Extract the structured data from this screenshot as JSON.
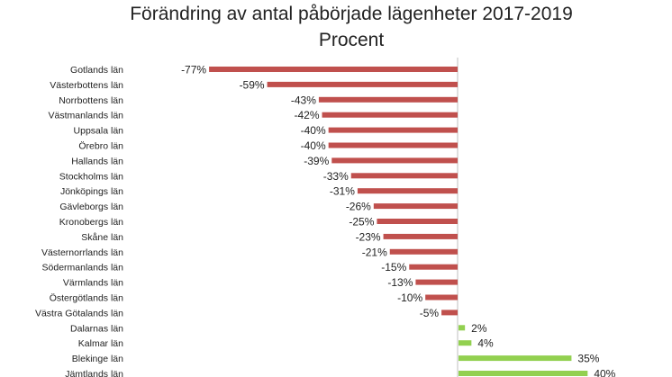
{
  "colors": {
    "negative": "#c0504d",
    "positive": "#92d050",
    "axis": "#bfbfbf",
    "text": "#222222"
  },
  "chart_data": {
    "type": "bar",
    "orientation": "horizontal",
    "title": "Förändring av antal påbörjade lägenheter 2017-2019",
    "subtitle": "Procent",
    "grid": false,
    "categories": [
      "Gotlands län",
      "Västerbottens län",
      "Norrbottens län",
      "Västmanlands län",
      "Uppsala län",
      "Örebro län",
      "Hallands län",
      "Stockholms län",
      "Jönköpings län",
      "Gävleborgs län",
      "Kronobergs län",
      "Skåne län",
      "Västernorrlands län",
      "Södermanlands län",
      "Värmlands län",
      "Östergötlands län",
      "Västra Götalands län",
      "Dalarnas län",
      "Kalmar län",
      "Blekinge län",
      "Jämtlands län"
    ],
    "values": [
      -77,
      -59,
      -43,
      -42,
      -40,
      -40,
      -39,
      -33,
      -31,
      -26,
      -25,
      -23,
      -21,
      -15,
      -13,
      -10,
      -5,
      2,
      4,
      35,
      40
    ],
    "value_labels": [
      "-77%",
      "-59%",
      "-43%",
      "-42%",
      "-40%",
      "-40%",
      "-39%",
      "-33%",
      "-31%",
      "-26%",
      "-25%",
      "-23%",
      "-21%",
      "-15%",
      "-13%",
      "-10%",
      "-5%",
      "2%",
      "4%",
      "35%",
      "40%"
    ]
  }
}
